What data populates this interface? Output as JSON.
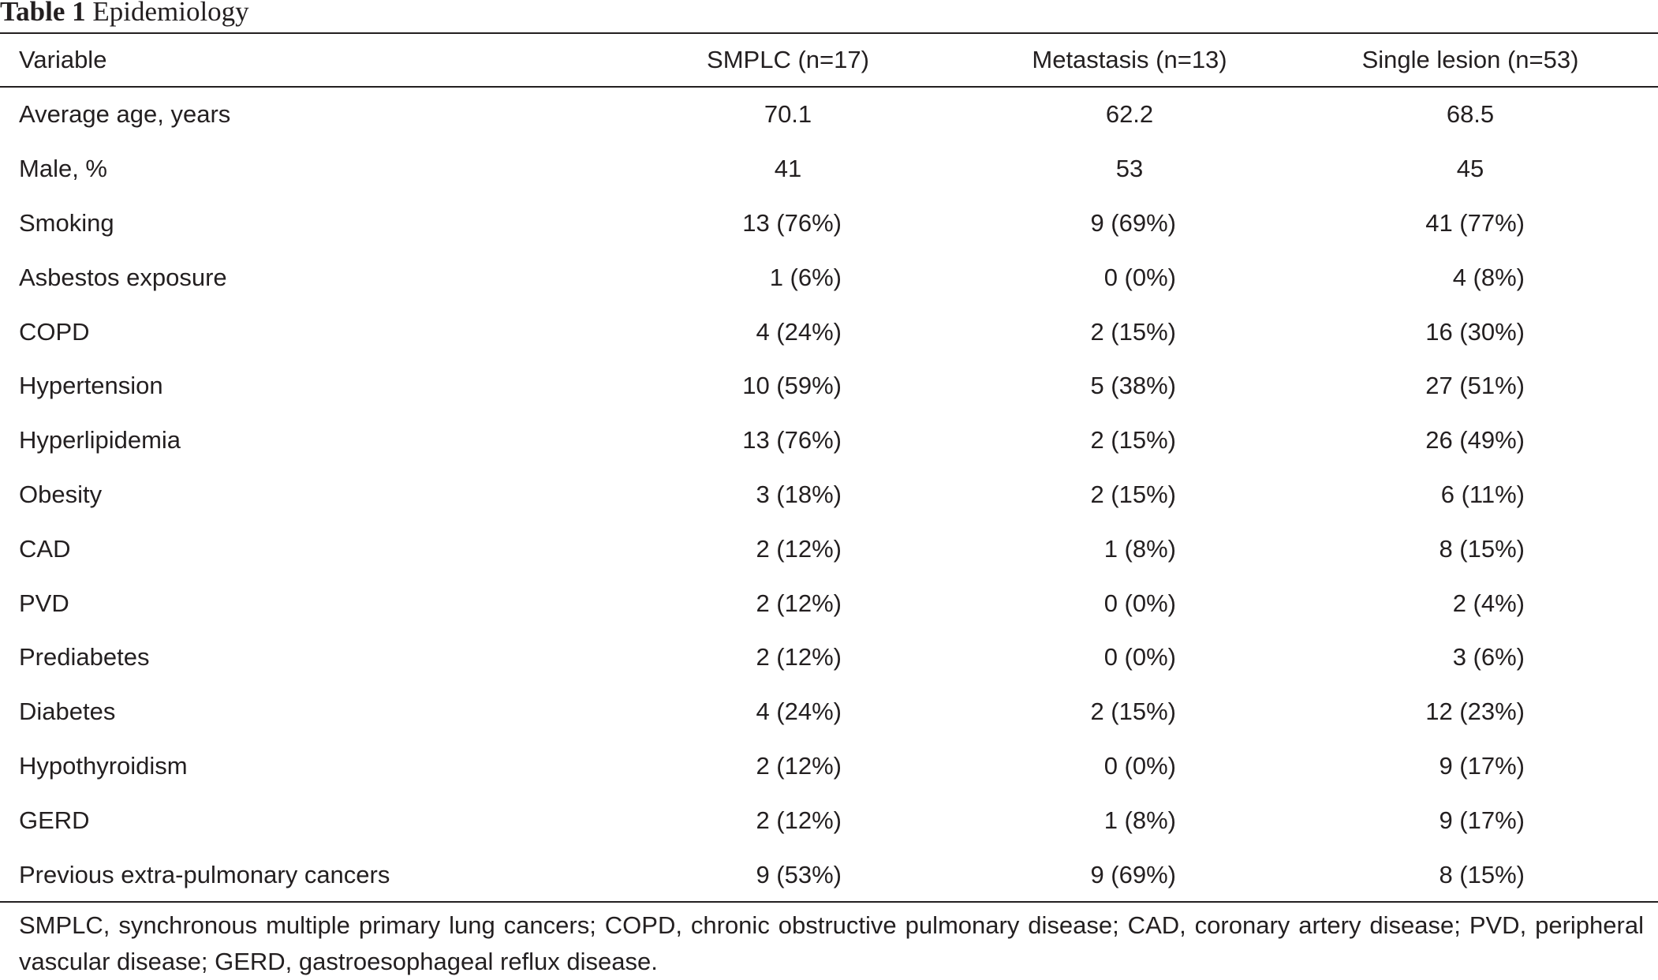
{
  "caption": {
    "label": "Table 1",
    "title": "Epidemiology"
  },
  "table": {
    "headers": [
      "Variable",
      "SMPLC (n=17)",
      "Metastasis (n=13)",
      "Single lesion (n=53)"
    ],
    "rows": [
      [
        "Average age, years",
        "70.1",
        "62.2",
        "68.5"
      ],
      [
        "Male, %",
        "41",
        "53",
        "45"
      ],
      [
        "Smoking",
        "13 (76%)",
        "9 (69%)",
        "41 (77%)"
      ],
      [
        "Asbestos exposure",
        "1 (6%)",
        "0 (0%)",
        "4 (8%)"
      ],
      [
        "COPD",
        "4 (24%)",
        "2 (15%)",
        "16 (30%)"
      ],
      [
        "Hypertension",
        "10 (59%)",
        "5 (38%)",
        "27 (51%)"
      ],
      [
        "Hyperlipidemia",
        "13 (76%)",
        "2 (15%)",
        "26 (49%)"
      ],
      [
        "Obesity",
        "3 (18%)",
        "2 (15%)",
        "6 (11%)"
      ],
      [
        "CAD",
        "2 (12%)",
        "1 (8%)",
        "8 (15%)"
      ],
      [
        "PVD",
        "2 (12%)",
        "0 (0%)",
        "2 (4%)"
      ],
      [
        "Prediabetes",
        "2 (12%)",
        "0 (0%)",
        "3 (6%)"
      ],
      [
        "Diabetes",
        "4 (24%)",
        "2 (15%)",
        "12 (23%)"
      ],
      [
        "Hypothyroidism",
        "2 (12%)",
        "0 (0%)",
        "9 (17%)"
      ],
      [
        "GERD",
        "2 (12%)",
        "1 (8%)",
        "9 (17%)"
      ],
      [
        "Previous extra-pulmonary cancers",
        "9 (53%)",
        "9 (69%)",
        "8 (15%)"
      ]
    ]
  },
  "footnote": "SMPLC, synchronous multiple primary lung cancers; COPD, chronic obstructive pulmonary disease; CAD, coronary artery disease; PVD, peripheral vascular disease; GERD, gastroesophageal reflux disease."
}
